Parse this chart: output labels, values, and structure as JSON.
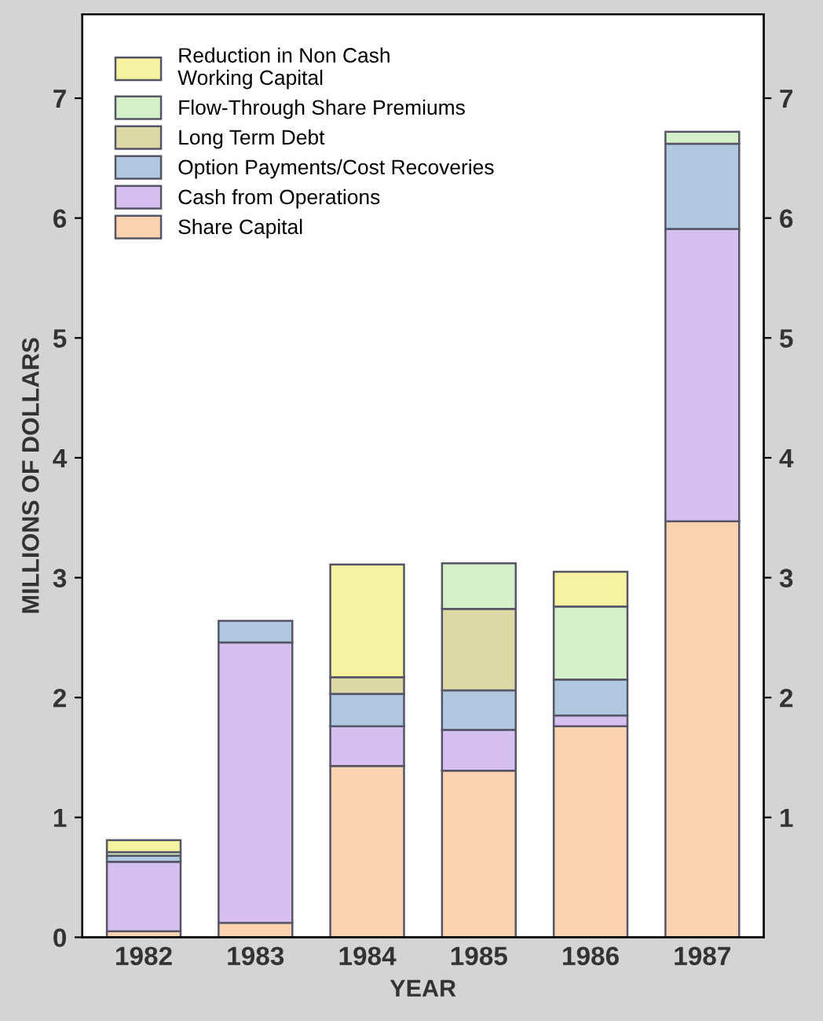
{
  "chart_data": {
    "type": "bar",
    "stacked": true,
    "xlabel": "YEAR",
    "ylabel": "MILLIONS OF DOLLARS",
    "categories": [
      "1982",
      "1983",
      "1984",
      "1985",
      "1986",
      "1987"
    ],
    "series": [
      {
        "name": "Share Capital",
        "color": "#fbd3b0",
        "values": [
          0.05,
          0.12,
          1.43,
          1.39,
          1.76,
          3.47
        ]
      },
      {
        "name": "Cash from Operations",
        "color": "#d6c0f0",
        "values": [
          0.58,
          2.34,
          0.33,
          0.34,
          0.09,
          2.44
        ]
      },
      {
        "name": "Option Payments/Cost Recoveries",
        "color": "#b0c8e0",
        "values": [
          0.05,
          0.18,
          0.27,
          0.33,
          0.3,
          0.71
        ]
      },
      {
        "name": "Long Term Debt",
        "color": "#ddd9a6",
        "values": [
          null,
          null,
          0.14,
          0.68,
          null,
          null
        ]
      },
      {
        "name": "Flow-Through Share Premiums",
        "color": "#d4f0c8",
        "values": [
          0.03,
          null,
          null,
          0.38,
          0.61,
          0.1
        ]
      },
      {
        "name": "Reduction in Non Cash\nWorking Capital",
        "color": "#f6f3a0",
        "values": [
          0.1,
          null,
          0.94,
          null,
          0.29,
          null
        ]
      }
    ],
    "ylim": [
      0,
      7.7
    ],
    "yticks": [
      0,
      1,
      2,
      3,
      4,
      5,
      6,
      7
    ],
    "y2lim": [
      0,
      7.7
    ],
    "y2ticks": [
      1,
      2,
      3,
      4,
      5,
      6,
      7
    ],
    "grid": false,
    "legend": "top left"
  }
}
